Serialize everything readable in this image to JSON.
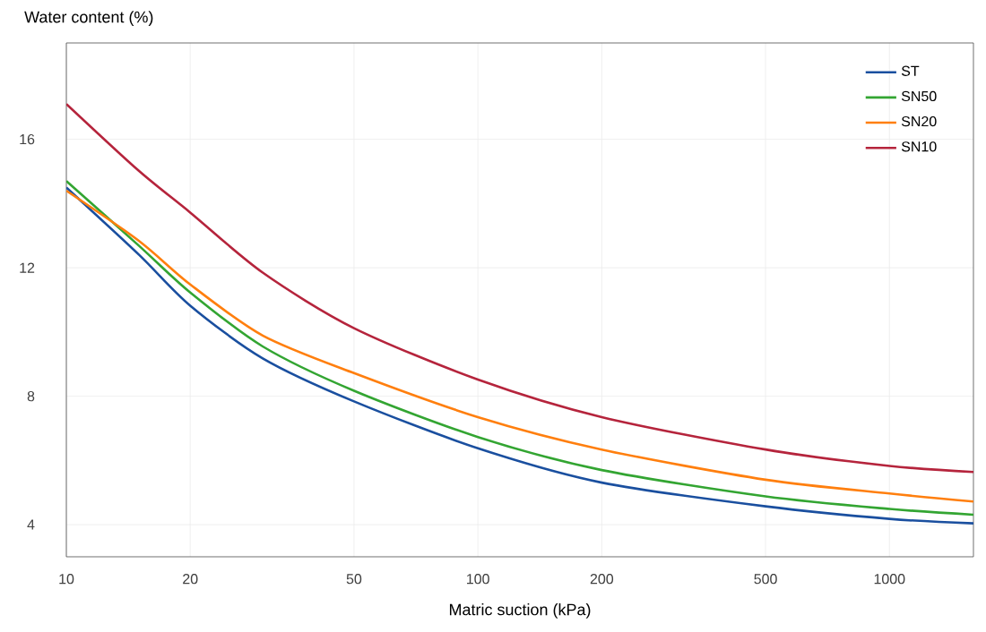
{
  "chart_data": {
    "type": "line",
    "xlabel": "Matric suction (kPa)",
    "ylabel": "Water content (%)",
    "log": "x",
    "grid": true,
    "legend": "top right",
    "marker": "none",
    "line_style": "solid",
    "xlim": [
      10,
      1600
    ],
    "xticks": [
      10,
      20,
      50,
      100,
      200,
      500,
      1000
    ],
    "ylim": [
      3,
      19
    ],
    "yticks": [
      4,
      8,
      12,
      16
    ],
    "x": [
      10,
      15,
      20,
      30,
      50,
      100,
      200,
      500,
      1000,
      1600
    ],
    "series": [
      {
        "name": "ST",
        "color": "#1a4f9f",
        "values": [
          14.5,
          12.41,
          10.82,
          9.18,
          7.84,
          6.38,
          5.31,
          4.57,
          4.18,
          4.04
        ]
      },
      {
        "name": "SN50",
        "color": "#33a532",
        "values": [
          14.7,
          12.69,
          11.23,
          9.55,
          8.17,
          6.73,
          5.7,
          4.88,
          4.49,
          4.31
        ]
      },
      {
        "name": "SN20",
        "color": "#ff7f0e",
        "values": [
          14.4,
          12.84,
          11.48,
          9.89,
          8.72,
          7.35,
          6.34,
          5.4,
          4.97,
          4.72
        ]
      },
      {
        "name": "SN10",
        "color": "#b5243c",
        "values": [
          17.1,
          15.02,
          13.72,
          11.85,
          10.12,
          8.52,
          7.35,
          6.34,
          5.83,
          5.64
        ]
      }
    ]
  }
}
